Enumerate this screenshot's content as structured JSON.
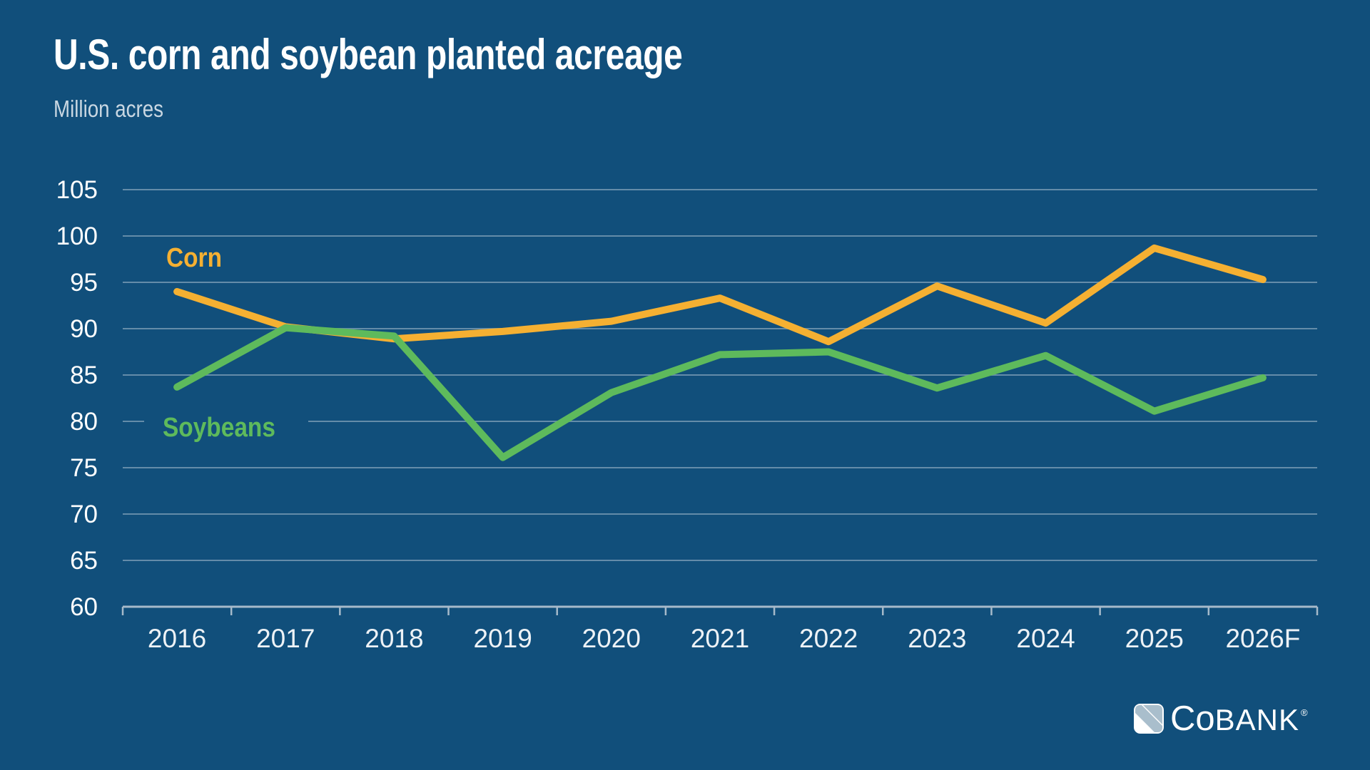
{
  "page": {
    "background_color": "#114F7B"
  },
  "header": {
    "title": "U.S. corn and soybean planted acreage",
    "subtitle": "Million acres"
  },
  "chart_data": {
    "type": "line",
    "title": "U.S. corn and soybean planted acreage",
    "ylabel": "Million acres",
    "xlabel": "",
    "categories": [
      "2016",
      "2017",
      "2018",
      "2019",
      "2020",
      "2021",
      "2022",
      "2023",
      "2024",
      "2025",
      "2026F"
    ],
    "series": [
      {
        "name": "Corn",
        "color": "#F5B032",
        "values": [
          94.0,
          90.2,
          88.9,
          89.7,
          90.8,
          93.3,
          88.6,
          94.6,
          90.6,
          98.7,
          95.3
        ]
      },
      {
        "name": "Soybeans",
        "color": "#5EBA5C",
        "values": [
          83.7,
          90.1,
          89.2,
          76.1,
          83.1,
          87.2,
          87.5,
          83.6,
          87.1,
          81.1,
          84.7
        ]
      }
    ],
    "y_ticks": [
      105,
      100,
      95,
      90,
      85,
      80,
      75,
      70,
      65,
      60
    ],
    "ylim": [
      60,
      105
    ],
    "grid": "horizontal",
    "legend": "inline-series-labels",
    "gridline_color": "rgba(255,255,255,0.35)",
    "axis_color": "#A6BACA",
    "tick_label_color": "#EDF2F6"
  },
  "logo": {
    "text_co": "Co",
    "text_bank": "BANK",
    "registered": "®"
  }
}
